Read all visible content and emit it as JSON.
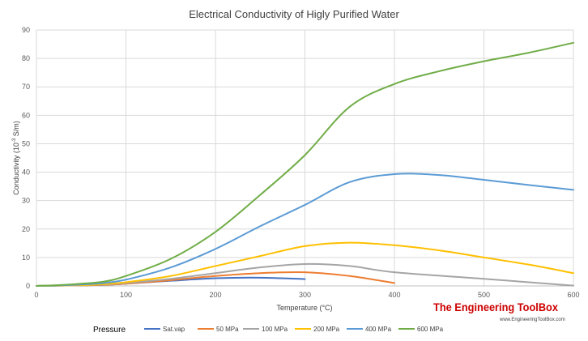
{
  "chart_data": {
    "type": "line",
    "title": "Electrical Conductivity of Higly Purified Water",
    "xlabel": "Temperature  (°C)",
    "ylabel_parts": [
      "Conductivity  (10",
      "-3",
      " S/m)"
    ],
    "xlim": [
      0,
      600
    ],
    "ylim": [
      0,
      90
    ],
    "xticks": [
      0,
      100,
      200,
      300,
      400,
      500,
      600
    ],
    "yticks": [
      0,
      10,
      20,
      30,
      40,
      50,
      60,
      70,
      80,
      90
    ],
    "grid": true,
    "legend": {
      "title": "Pressure",
      "placement": "bottom"
    },
    "series": [
      {
        "name": "Sat.vap",
        "color": "#4472C4",
        "x": [
          0,
          25,
          50,
          75,
          100,
          150,
          200,
          250,
          300
        ],
        "y": [
          0.006,
          0.1,
          0.2,
          0.4,
          0.8,
          1.8,
          2.7,
          2.9,
          2.4
        ]
      },
      {
        "name": "50 MPa",
        "color": "#ED7D31",
        "x": [
          0,
          25,
          50,
          75,
          100,
          150,
          200,
          250,
          300,
          350,
          400
        ],
        "y": [
          0.006,
          0.1,
          0.2,
          0.4,
          0.8,
          2.0,
          3.5,
          4.5,
          4.8,
          3.5,
          1.0
        ]
      },
      {
        "name": "100 MPa",
        "color": "#A5A5A5",
        "x": [
          0,
          25,
          50,
          75,
          100,
          150,
          200,
          250,
          300,
          350,
          400,
          500,
          600
        ],
        "y": [
          0.006,
          0.1,
          0.25,
          0.5,
          1.0,
          2.5,
          4.5,
          6.5,
          7.7,
          7.0,
          4.8,
          2.5,
          0.1
        ]
      },
      {
        "name": "200 MPa",
        "color": "#FFC000",
        "x": [
          0,
          25,
          50,
          75,
          100,
          150,
          200,
          250,
          300,
          350,
          400,
          450,
          500,
          550,
          600
        ],
        "y": [
          0.006,
          0.15,
          0.3,
          0.6,
          1.3,
          3.5,
          7.0,
          10.5,
          14.0,
          15.2,
          14.3,
          12.5,
          10.0,
          7.5,
          4.5
        ]
      },
      {
        "name": "400 MPa",
        "color": "#5B9BD5",
        "x": [
          0,
          25,
          50,
          75,
          100,
          150,
          200,
          250,
          300,
          350,
          400,
          450,
          500,
          550,
          600
        ],
        "y": [
          0.006,
          0.2,
          0.5,
          1.0,
          2.2,
          6.5,
          13.0,
          21.0,
          28.5,
          36.5,
          39.3,
          39.0,
          37.3,
          35.5,
          33.8
        ]
      },
      {
        "name": "600 MPa",
        "color": "#70AD47",
        "x": [
          0,
          25,
          50,
          75,
          100,
          150,
          200,
          250,
          300,
          350,
          400,
          450,
          500,
          550,
          600
        ],
        "y": [
          0.006,
          0.3,
          0.8,
          1.5,
          3.5,
          9.5,
          19.0,
          32.0,
          46.0,
          63.0,
          71.0,
          75.5,
          79.0,
          82.0,
          85.5
        ]
      }
    ]
  },
  "watermark": {
    "logo_text": "The Engineering ToolBox",
    "url": "www.EngineeringToolBox.com",
    "color": "#cc0000"
  }
}
